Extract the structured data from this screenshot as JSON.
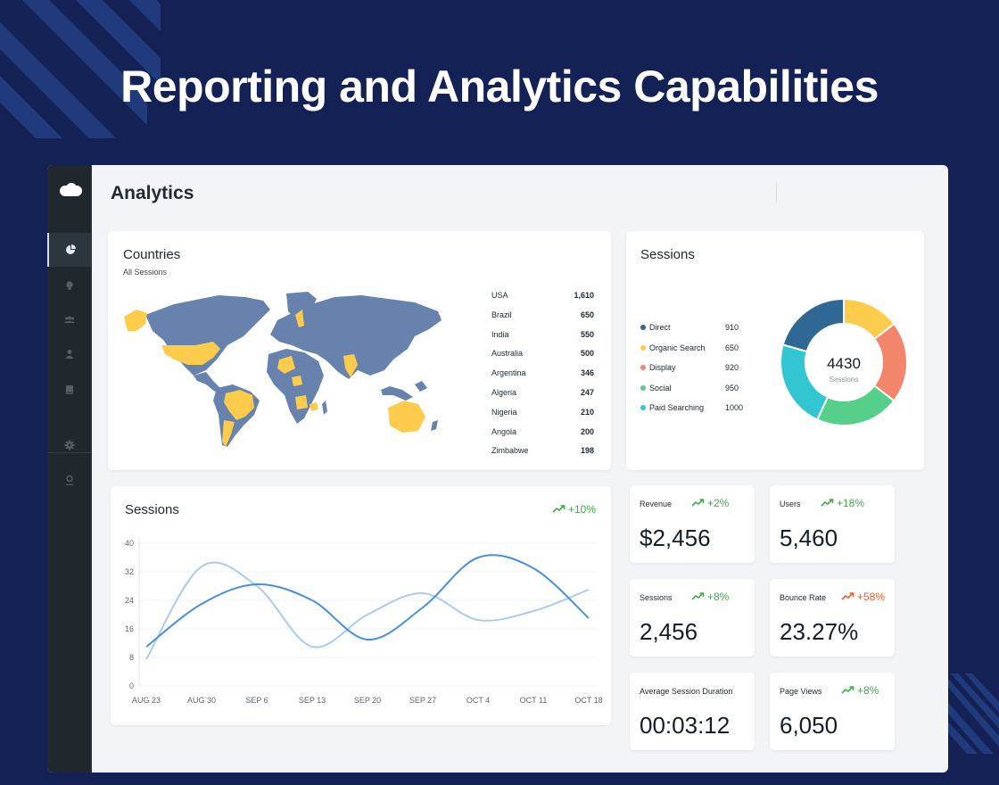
{
  "headline": "Reporting and Analytics Capabilities",
  "app": {
    "title": "Analytics",
    "logo": "cloud-logo"
  },
  "sidebar": {
    "items": [
      {
        "icon": "pie-chart-icon",
        "active": true
      },
      {
        "icon": "lightbulb-icon",
        "active": false
      },
      {
        "icon": "users-icon",
        "active": false
      },
      {
        "icon": "user-icon",
        "active": false
      },
      {
        "icon": "book-icon",
        "active": false
      },
      {
        "icon": "gear-icon",
        "active": false
      },
      {
        "icon": "profile-icon",
        "active": false
      }
    ]
  },
  "countries": {
    "title": "Countries",
    "subtitle": "All Sessions",
    "rows": [
      {
        "name": "USA",
        "value": "1,610"
      },
      {
        "name": "Brazil",
        "value": "650"
      },
      {
        "name": "India",
        "value": "550"
      },
      {
        "name": "Australia",
        "value": "500"
      },
      {
        "name": "Argentina",
        "value": "346"
      },
      {
        "name": "Algeria",
        "value": "247"
      },
      {
        "name": "Nigeria",
        "value": "210"
      },
      {
        "name": "Angola",
        "value": "200"
      },
      {
        "name": "Zimbabwe",
        "value": "198"
      }
    ]
  },
  "sessions_donut": {
    "title": "Sessions",
    "total": "4430",
    "total_label": "Sessions",
    "legend": [
      {
        "name": "Direct",
        "value": "910",
        "color": "#2f6894"
      },
      {
        "name": "Organic Search",
        "value": "650",
        "color": "#fdcc4d"
      },
      {
        "name": "Display",
        "value": "920",
        "color": "#f3866a"
      },
      {
        "name": "Social",
        "value": "950",
        "color": "#55cf8a"
      },
      {
        "name": "Paid Searching",
        "value": "1000",
        "color": "#31c6d2"
      }
    ]
  },
  "sessions_chart": {
    "title": "Sessions",
    "trend": "+10%"
  },
  "metrics": [
    {
      "label": "Revenue",
      "value": "$2,456",
      "trend": "+2%",
      "trend_color": "green"
    },
    {
      "label": "Users",
      "value": "5,460",
      "trend": "+18%",
      "trend_color": "green"
    },
    {
      "label": "Sessions",
      "value": "2,456",
      "trend": "+8%",
      "trend_color": "green"
    },
    {
      "label": "Bounce Rate",
      "value": "23.27%",
      "trend": "+58%",
      "trend_color": "red"
    },
    {
      "label": "Average Session Duration",
      "value": "00:03:12",
      "trend": "",
      "trend_color": "green"
    },
    {
      "label": "Page Views",
      "value": "6,050",
      "trend": "+8%",
      "trend_color": "green"
    }
  ],
  "chart_data": {
    "type": "line",
    "title": "Sessions",
    "categories": [
      "AUG 23",
      "AUG 30",
      "SEP 6",
      "SEP 13",
      "SEP 20",
      "SEP 27",
      "OCT 4",
      "OCT 11",
      "OCT 18"
    ],
    "yticks": [
      0,
      8,
      16,
      24,
      32,
      40
    ],
    "ylim": [
      0,
      40
    ],
    "grid": true,
    "series": [
      {
        "values": [
          11,
          23,
          28.5,
          24,
          13,
          22,
          36,
          33,
          19
        ],
        "color": "#4a8fdc"
      },
      {
        "values": [
          7.5,
          33.5,
          28,
          11,
          20,
          26,
          18.5,
          21,
          27
        ],
        "color": "#a9cbef"
      }
    ]
  }
}
